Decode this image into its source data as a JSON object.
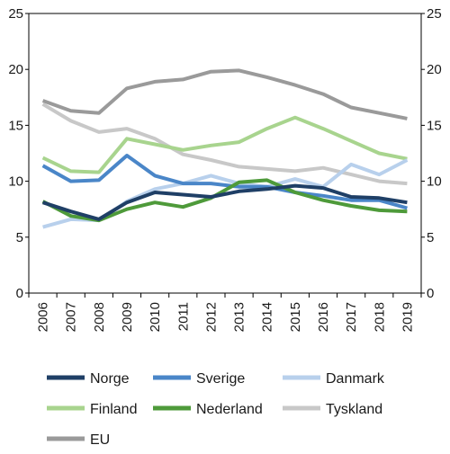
{
  "chart_data": {
    "type": "line",
    "title": "",
    "xlabel": "",
    "ylabel": "",
    "categories": [
      "2006",
      "2007",
      "2008",
      "2009",
      "2010",
      "2011",
      "2012",
      "2013",
      "2014",
      "2015",
      "2016",
      "2017",
      "2018",
      "2019"
    ],
    "ylim": [
      0,
      25
    ],
    "yticks": [
      "0",
      "5",
      "10",
      "15",
      "20",
      "25"
    ],
    "grid": false,
    "secondary_axis_right": true,
    "legend_position": "bottom",
    "series": [
      {
        "name": "Norge",
        "color": "#1f3f66",
        "values": [
          8.1,
          7.3,
          6.6,
          8.1,
          9.0,
          8.8,
          8.6,
          9.1,
          9.3,
          9.6,
          9.4,
          8.6,
          8.5,
          8.1
        ]
      },
      {
        "name": "Sverige",
        "color": "#4a86c8",
        "values": [
          11.4,
          10.0,
          10.1,
          12.3,
          10.5,
          9.8,
          9.8,
          9.5,
          9.5,
          9.0,
          8.7,
          8.3,
          8.3,
          7.6
        ]
      },
      {
        "name": "Danmark",
        "color": "#b8d0ec",
        "values": [
          5.9,
          6.6,
          6.5,
          8.2,
          9.3,
          9.8,
          10.5,
          9.8,
          9.5,
          10.2,
          9.5,
          11.5,
          10.6,
          11.9
        ]
      },
      {
        "name": "Finland",
        "color": "#a8d48e",
        "values": [
          12.1,
          10.9,
          10.8,
          13.8,
          13.3,
          12.8,
          13.2,
          13.5,
          14.7,
          15.7,
          14.7,
          13.6,
          12.5,
          12.0
        ]
      },
      {
        "name": "Nederland",
        "color": "#4e9a3a",
        "values": [
          8.2,
          6.9,
          6.5,
          7.5,
          8.1,
          7.7,
          8.5,
          9.9,
          10.1,
          9.0,
          8.3,
          7.8,
          7.4,
          7.3
        ]
      },
      {
        "name": "Tyskland",
        "color": "#c8c8c8",
        "values": [
          16.9,
          15.4,
          14.4,
          14.7,
          13.8,
          12.4,
          11.9,
          11.3,
          11.1,
          10.9,
          11.2,
          10.6,
          10.0,
          9.8
        ]
      },
      {
        "name": "EU",
        "color": "#9a9a9a",
        "values": [
          17.2,
          16.3,
          16.1,
          18.3,
          18.9,
          19.1,
          19.8,
          19.9,
          19.3,
          18.6,
          17.8,
          16.6,
          16.1,
          15.6
        ]
      }
    ]
  }
}
